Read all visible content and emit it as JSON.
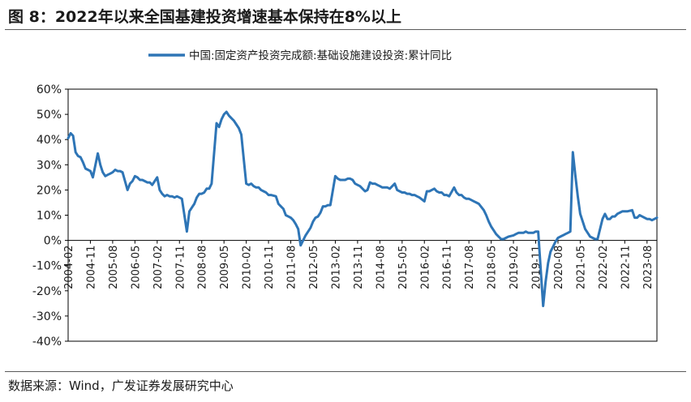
{
  "header": {
    "title": "图 8：2022年以来全国基建投资增速基本保持在8%以上"
  },
  "footer": {
    "source": "数据来源：Wind，广发证券发展研究中心"
  },
  "chart_data": {
    "type": "line",
    "title": "",
    "xlabel": "",
    "ylabel": "",
    "ylim": [
      -40,
      60
    ],
    "y_unit": "%",
    "yticks": [
      -40,
      -30,
      -20,
      -10,
      0,
      10,
      20,
      30,
      40,
      50,
      60
    ],
    "ytick_labels": [
      "-40%",
      "-30%",
      "-20%",
      "-10%",
      "0%",
      "10%",
      "20%",
      "30%",
      "40%",
      "50%",
      "60%"
    ],
    "xlim": [
      "2004-02",
      "2023-12"
    ],
    "xtick_labels": [
      "2004-02",
      "2004-11",
      "2005-08",
      "2006-05",
      "2007-02",
      "2007-11",
      "2008-08",
      "2009-05",
      "2010-02",
      "2010-11",
      "2011-08",
      "2012-05",
      "2013-02",
      "2013-11",
      "2014-08",
      "2015-05",
      "2016-02",
      "2016-11",
      "2017-08",
      "2018-05",
      "2019-02",
      "2019-11",
      "2020-08",
      "2021-05",
      "2022-02",
      "2022-11",
      "2023-08"
    ],
    "grid": false,
    "legend_position": "top-center",
    "series": [
      {
        "name": "中国:固定资产投资完成额:基础设施建设投资:累计同比",
        "color": "#2e75b6",
        "points": [
          [
            "2004-02",
            40.5
          ],
          [
            "2004-03",
            42.5
          ],
          [
            "2004-04",
            41.5
          ],
          [
            "2004-05",
            35.0
          ],
          [
            "2004-06",
            33.5
          ],
          [
            "2004-07",
            33.0
          ],
          [
            "2004-08",
            31.0
          ],
          [
            "2004-09",
            28.5
          ],
          [
            "2004-10",
            28.0
          ],
          [
            "2004-11",
            27.5
          ],
          [
            "2004-12",
            25.0
          ],
          [
            "2005-02",
            34.5
          ],
          [
            "2005-03",
            30.0
          ],
          [
            "2005-04",
            27.0
          ],
          [
            "2005-05",
            25.5
          ],
          [
            "2005-06",
            26.0
          ],
          [
            "2005-07",
            26.5
          ],
          [
            "2005-08",
            27.0
          ],
          [
            "2005-09",
            28.0
          ],
          [
            "2005-10",
            27.5
          ],
          [
            "2005-11",
            27.5
          ],
          [
            "2005-12",
            27.0
          ],
          [
            "2006-02",
            20.0
          ],
          [
            "2006-03",
            22.5
          ],
          [
            "2006-04",
            23.5
          ],
          [
            "2006-05",
            25.5
          ],
          [
            "2006-06",
            25.0
          ],
          [
            "2006-07",
            24.0
          ],
          [
            "2006-08",
            24.0
          ],
          [
            "2006-09",
            23.5
          ],
          [
            "2006-10",
            23.0
          ],
          [
            "2006-11",
            23.0
          ],
          [
            "2006-12",
            22.0
          ],
          [
            "2007-02",
            25.0
          ],
          [
            "2007-03",
            20.0
          ],
          [
            "2007-04",
            18.5
          ],
          [
            "2007-05",
            17.5
          ],
          [
            "2007-06",
            18.0
          ],
          [
            "2007-07",
            17.5
          ],
          [
            "2007-08",
            17.5
          ],
          [
            "2007-09",
            17.0
          ],
          [
            "2007-10",
            17.5
          ],
          [
            "2007-11",
            17.0
          ],
          [
            "2007-12",
            16.5
          ],
          [
            "2008-02",
            3.5
          ],
          [
            "2008-03",
            11.5
          ],
          [
            "2008-04",
            13.0
          ],
          [
            "2008-05",
            14.5
          ],
          [
            "2008-06",
            17.0
          ],
          [
            "2008-07",
            18.5
          ],
          [
            "2008-08",
            18.5
          ],
          [
            "2008-09",
            19.0
          ],
          [
            "2008-10",
            20.5
          ],
          [
            "2008-11",
            20.5
          ],
          [
            "2008-12",
            22.5
          ],
          [
            "2009-02",
            46.5
          ],
          [
            "2009-03",
            45.0
          ],
          [
            "2009-04",
            48.0
          ],
          [
            "2009-05",
            50.0
          ],
          [
            "2009-06",
            51.0
          ],
          [
            "2009-07",
            49.5
          ],
          [
            "2009-08",
            48.5
          ],
          [
            "2009-09",
            47.5
          ],
          [
            "2009-10",
            46.0
          ],
          [
            "2009-11",
            44.5
          ],
          [
            "2009-12",
            42.0
          ],
          [
            "2010-02",
            22.5
          ],
          [
            "2010-03",
            22.0
          ],
          [
            "2010-04",
            22.5
          ],
          [
            "2010-05",
            21.5
          ],
          [
            "2010-06",
            21.0
          ],
          [
            "2010-07",
            21.0
          ],
          [
            "2010-08",
            20.0
          ],
          [
            "2010-09",
            19.5
          ],
          [
            "2010-10",
            19.0
          ],
          [
            "2010-11",
            18.0
          ],
          [
            "2010-12",
            18.0
          ],
          [
            "2011-02",
            17.5
          ],
          [
            "2011-03",
            14.5
          ],
          [
            "2011-04",
            13.5
          ],
          [
            "2011-05",
            12.5
          ],
          [
            "2011-06",
            10.0
          ],
          [
            "2011-07",
            9.5
          ],
          [
            "2011-08",
            9.0
          ],
          [
            "2011-09",
            8.0
          ],
          [
            "2011-10",
            6.5
          ],
          [
            "2011-11",
            4.5
          ],
          [
            "2011-12",
            -2.0
          ],
          [
            "2012-02",
            2.0
          ],
          [
            "2012-03",
            3.5
          ],
          [
            "2012-04",
            5.0
          ],
          [
            "2012-05",
            7.5
          ],
          [
            "2012-06",
            9.0
          ],
          [
            "2012-07",
            9.5
          ],
          [
            "2012-08",
            11.0
          ],
          [
            "2012-09",
            13.5
          ],
          [
            "2012-10",
            13.5
          ],
          [
            "2012-11",
            14.0
          ],
          [
            "2012-12",
            14.0
          ],
          [
            "2013-02",
            25.5
          ],
          [
            "2013-03",
            24.5
          ],
          [
            "2013-04",
            24.0
          ],
          [
            "2013-05",
            24.0
          ],
          [
            "2013-06",
            24.0
          ],
          [
            "2013-07",
            24.5
          ],
          [
            "2013-08",
            24.5
          ],
          [
            "2013-09",
            24.0
          ],
          [
            "2013-10",
            22.5
          ],
          [
            "2013-11",
            22.0
          ],
          [
            "2013-12",
            21.5
          ],
          [
            "2014-02",
            19.5
          ],
          [
            "2014-03",
            20.0
          ],
          [
            "2014-04",
            23.0
          ],
          [
            "2014-05",
            22.5
          ],
          [
            "2014-06",
            22.5
          ],
          [
            "2014-07",
            22.0
          ],
          [
            "2014-08",
            21.5
          ],
          [
            "2014-09",
            21.0
          ],
          [
            "2014-10",
            21.0
          ],
          [
            "2014-11",
            21.0
          ],
          [
            "2014-12",
            20.5
          ],
          [
            "2015-02",
            22.5
          ],
          [
            "2015-03",
            20.0
          ],
          [
            "2015-04",
            19.5
          ],
          [
            "2015-05",
            19.0
          ],
          [
            "2015-06",
            19.0
          ],
          [
            "2015-07",
            18.5
          ],
          [
            "2015-08",
            18.5
          ],
          [
            "2015-09",
            18.0
          ],
          [
            "2015-10",
            18.0
          ],
          [
            "2015-11",
            17.5
          ],
          [
            "2015-12",
            17.0
          ],
          [
            "2016-02",
            15.5
          ],
          [
            "2016-03",
            19.5
          ],
          [
            "2016-04",
            19.5
          ],
          [
            "2016-05",
            20.0
          ],
          [
            "2016-06",
            20.5
          ],
          [
            "2016-07",
            19.5
          ],
          [
            "2016-08",
            19.0
          ],
          [
            "2016-09",
            19.0
          ],
          [
            "2016-10",
            18.0
          ],
          [
            "2016-11",
            18.0
          ],
          [
            "2016-12",
            17.5
          ],
          [
            "2017-02",
            21.0
          ],
          [
            "2017-03",
            19.0
          ],
          [
            "2017-04",
            18.0
          ],
          [
            "2017-05",
            18.0
          ],
          [
            "2017-06",
            17.0
          ],
          [
            "2017-07",
            16.5
          ],
          [
            "2017-08",
            16.5
          ],
          [
            "2017-09",
            16.0
          ],
          [
            "2017-10",
            15.5
          ],
          [
            "2017-11",
            15.0
          ],
          [
            "2017-12",
            14.5
          ],
          [
            "2018-02",
            12.0
          ],
          [
            "2018-03",
            10.0
          ],
          [
            "2018-04",
            7.5
          ],
          [
            "2018-05",
            5.5
          ],
          [
            "2018-06",
            4.0
          ],
          [
            "2018-07",
            2.5
          ],
          [
            "2018-08",
            1.5
          ],
          [
            "2018-09",
            0.5
          ],
          [
            "2018-10",
            0.5
          ],
          [
            "2018-11",
            1.0
          ],
          [
            "2018-12",
            1.5
          ],
          [
            "2019-02",
            2.0
          ],
          [
            "2019-03",
            2.5
          ],
          [
            "2019-04",
            3.0
          ],
          [
            "2019-05",
            3.0
          ],
          [
            "2019-06",
            3.0
          ],
          [
            "2019-07",
            3.5
          ],
          [
            "2019-08",
            3.0
          ],
          [
            "2019-09",
            3.0
          ],
          [
            "2019-10",
            3.0
          ],
          [
            "2019-11",
            3.5
          ],
          [
            "2019-12",
            3.5
          ],
          [
            "2020-02",
            -26.0
          ],
          [
            "2020-03",
            -16.5
          ],
          [
            "2020-04",
            -9.0
          ],
          [
            "2020-05",
            -4.5
          ],
          [
            "2020-06",
            -2.5
          ],
          [
            "2020-07",
            -0.5
          ],
          [
            "2020-08",
            1.0
          ],
          [
            "2020-09",
            1.5
          ],
          [
            "2020-10",
            2.0
          ],
          [
            "2020-11",
            2.5
          ],
          [
            "2020-12",
            3.0
          ],
          [
            "2021-01",
            3.5
          ],
          [
            "2021-02",
            35.0
          ],
          [
            "2021-03",
            26.0
          ],
          [
            "2021-04",
            17.5
          ],
          [
            "2021-05",
            10.5
          ],
          [
            "2021-06",
            7.5
          ],
          [
            "2021-07",
            4.5
          ],
          [
            "2021-08",
            3.0
          ],
          [
            "2021-09",
            1.5
          ],
          [
            "2021-10",
            1.0
          ],
          [
            "2021-11",
            0.5
          ],
          [
            "2021-12",
            0.5
          ],
          [
            "2022-02",
            8.5
          ],
          [
            "2022-03",
            10.5
          ],
          [
            "2022-04",
            8.5
          ],
          [
            "2022-05",
            8.5
          ],
          [
            "2022-06",
            9.5
          ],
          [
            "2022-07",
            9.5
          ],
          [
            "2022-08",
            10.5
          ],
          [
            "2022-09",
            11.0
          ],
          [
            "2022-10",
            11.5
          ],
          [
            "2022-11",
            11.5
          ],
          [
            "2022-12",
            11.5
          ],
          [
            "2023-02",
            12.0
          ],
          [
            "2023-03",
            9.0
          ],
          [
            "2023-04",
            9.0
          ],
          [
            "2023-05",
            10.0
          ],
          [
            "2023-06",
            9.5
          ],
          [
            "2023-07",
            9.0
          ],
          [
            "2023-08",
            8.5
          ],
          [
            "2023-09",
            8.5
          ],
          [
            "2023-10",
            8.0
          ],
          [
            "2023-11",
            8.5
          ],
          [
            "2023-12",
            9.0
          ]
        ]
      }
    ]
  }
}
